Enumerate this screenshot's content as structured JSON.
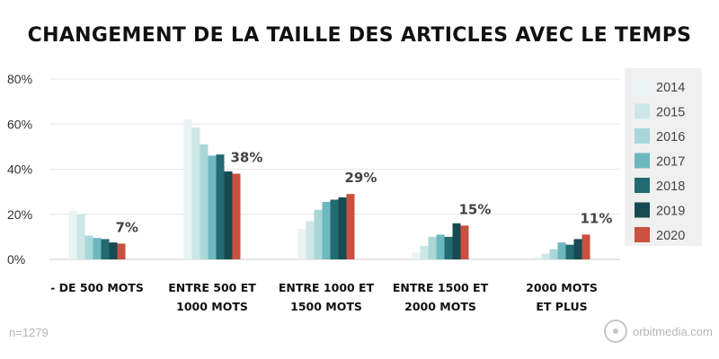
{
  "chart_data": {
    "type": "bar",
    "title": "CHANGEMENT DE LA TAILLE DES ARTICLES AVEC LE TEMPS",
    "xlabel": "",
    "ylabel": "",
    "ylim": [
      0,
      80
    ],
    "yticks": [
      0,
      20,
      40,
      60,
      80
    ],
    "ytick_labels": [
      "0%",
      "20%",
      "40%",
      "60%",
      "80%"
    ],
    "grid": true,
    "legend_position": "right",
    "categories": [
      [
        "- DE 500 MOTS"
      ],
      [
        "ENTRE 500 ET",
        "1000 MOTS"
      ],
      [
        "ENTRE 1000 ET",
        "1500 MOTS"
      ],
      [
        "ENTRE 1500 ET",
        "2000 MOTS"
      ],
      [
        "2000 MOTS",
        "ET PLUS"
      ]
    ],
    "series": [
      {
        "name": "2014",
        "color": "#e8f3f3",
        "values": [
          21.5,
          62,
          13.5,
          3,
          1
        ]
      },
      {
        "name": "2015",
        "color": "#cde6e7",
        "values": [
          20,
          58.5,
          17,
          6,
          2.5
        ]
      },
      {
        "name": "2016",
        "color": "#a9d6d9",
        "values": [
          10.5,
          51,
          22,
          10,
          4.5
        ]
      },
      {
        "name": "2017",
        "color": "#6db8bf",
        "values": [
          9.5,
          46,
          25.5,
          11,
          7.5
        ]
      },
      {
        "name": "2018",
        "color": "#236a72",
        "values": [
          9,
          46.5,
          26.5,
          10,
          6.5
        ]
      },
      {
        "name": "2019",
        "color": "#174a51",
        "values": [
          7.5,
          39,
          27.5,
          16,
          9
        ]
      },
      {
        "name": "2020",
        "color": "#c9513f",
        "values": [
          7,
          38,
          29,
          15,
          11
        ]
      }
    ],
    "annotations": [
      "7%",
      "38%",
      "29%",
      "15%",
      "11%"
    ]
  },
  "footer": {
    "sample_size": "n=1279",
    "brand": "orbitmedia.com"
  },
  "colors": {
    "grid": "#e5e5e5",
    "axis": "#cccccc",
    "legend_bg": "#f0f0f0",
    "logo": "#c7c7c7"
  }
}
